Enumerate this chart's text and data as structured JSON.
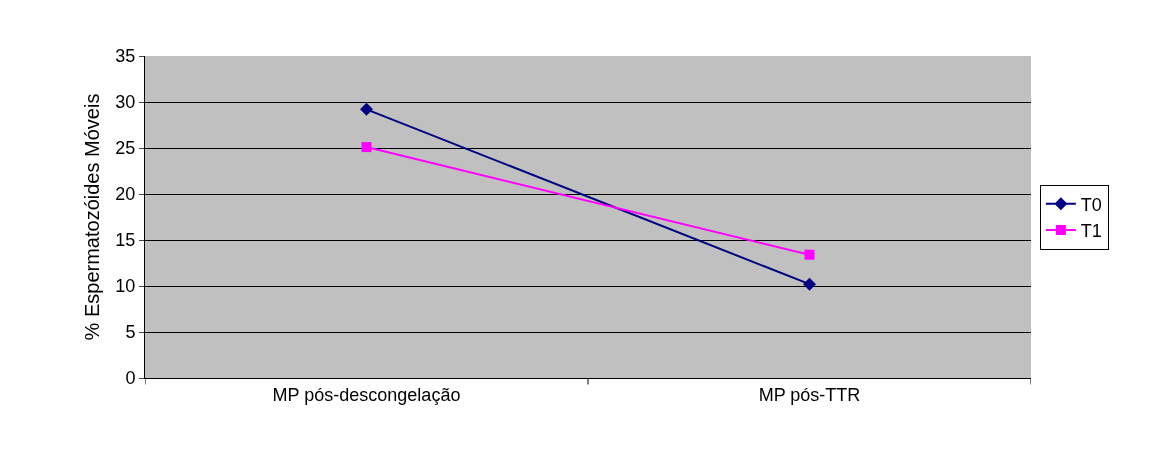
{
  "chart_data": {
    "type": "line",
    "ylabel": "% Espermatozóides Móveis",
    "categories": [
      "MP pós-descongelação",
      "MP pós-TTR"
    ],
    "series": [
      {
        "name": "T0",
        "color": "#000080",
        "marker": "diamond",
        "values": [
          29.2,
          10.2
        ]
      },
      {
        "name": "T1",
        "color": "#ff00ff",
        "marker": "square",
        "values": [
          25.1,
          13.4
        ]
      }
    ],
    "ylim": [
      0,
      35
    ],
    "yticks": [
      0,
      5,
      10,
      15,
      20,
      25,
      30,
      35
    ],
    "grid": "y",
    "legend": "right",
    "line_style": "solid"
  }
}
